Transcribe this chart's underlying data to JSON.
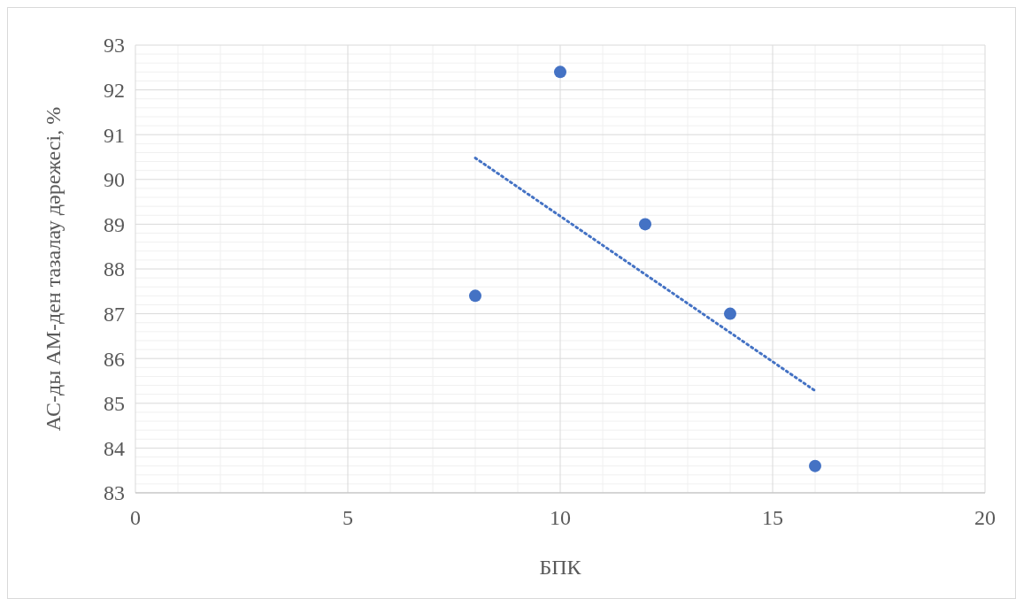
{
  "chart_data": {
    "type": "scatter",
    "xlabel": "БПК",
    "ylabel": "АС-ды АМ-ден тазалау дәрежесі, %",
    "xlim": [
      0,
      20
    ],
    "xticks": [
      0,
      5,
      10,
      15,
      20
    ],
    "ylim": [
      83,
      93
    ],
    "yticks": [
      83,
      84,
      85,
      86,
      87,
      88,
      89,
      90,
      91,
      92,
      93
    ],
    "grid": true,
    "series": [
      {
        "color": "#4472c4",
        "marker": "circle",
        "x": [
          8,
          10,
          12,
          14,
          16
        ],
        "values": [
          87.4,
          92.4,
          89,
          87,
          83.6
        ]
      },
      {
        "type": "line",
        "color": "#4472c4",
        "line_style": "dotted",
        "marker": "none",
        "x": [
          8,
          16
        ],
        "values": [
          90.48,
          85.28
        ]
      }
    ]
  }
}
